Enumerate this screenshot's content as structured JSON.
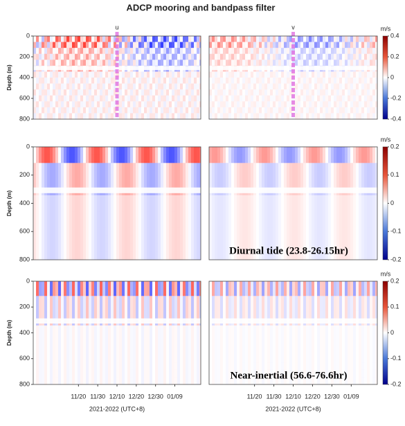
{
  "title": "ADCP mooring and bandpass filter",
  "chart_data": [
    {
      "type": "heatmap",
      "title": "u",
      "ylabel": "Depth (m)",
      "ylim": [
        0,
        800
      ],
      "yticks": [
        0,
        200,
        400,
        600,
        800
      ]
    },
    {
      "type": "heatmap",
      "title": "v",
      "ylim": [
        0,
        800
      ],
      "colorbar": {
        "label": "m/s",
        "lim": [
          -0.4,
          0.4
        ],
        "ticks": [
          0.4,
          0.2,
          0,
          -0.2,
          -0.4
        ]
      }
    },
    {
      "type": "heatmap",
      "ylabel": "Depth (m)",
      "ylim": [
        0,
        800
      ],
      "yticks": [
        0,
        200,
        400,
        600,
        800
      ]
    },
    {
      "type": "heatmap",
      "ylim": [
        0,
        800
      ],
      "annotation": "Diurnal tide (23.8-26.15hr)",
      "colorbar": {
        "label": "m/s",
        "lim": [
          -0.2,
          0.2
        ],
        "ticks": [
          0.2,
          0.1,
          0,
          -0.1,
          -0.2
        ]
      }
    },
    {
      "type": "heatmap",
      "ylabel": "Depth (m)",
      "ylim": [
        0,
        800
      ],
      "yticks": [
        0,
        200,
        400,
        600,
        800
      ],
      "xticks": [
        "11/20",
        "11/30",
        "12/10",
        "12/20",
        "12/30",
        "01/09"
      ],
      "xlabel": "2021-2022 (UTC+8)"
    },
    {
      "type": "heatmap",
      "ylim": [
        0,
        800
      ],
      "annotation": "Near-inertial (56.6-76.6hr)",
      "xticks": [
        "11/20",
        "11/30",
        "12/10",
        "12/20",
        "12/30",
        "01/09"
      ],
      "xlabel": "2021-2022 (UTC+8)",
      "colorbar": {
        "label": "m/s",
        "lim": [
          -0.2,
          0.2
        ],
        "ticks": [
          0.2,
          0.1,
          0,
          -0.1,
          -0.2
        ]
      }
    }
  ]
}
